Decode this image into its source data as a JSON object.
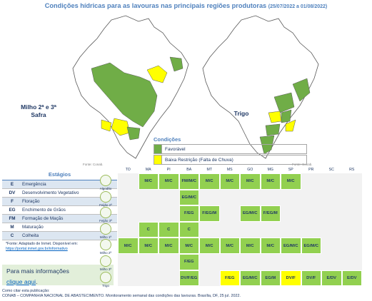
{
  "title": "Condições hídricas para as lavouras nas principais regiões produtoras",
  "period": "(25/07/2022 a 01/08/2022)",
  "map_left_label_line1": "Milho 2ª e 3ª",
  "map_left_label_line2": "Safra",
  "map_right_label": "Trigo",
  "map_source": "Fonte: Conab.",
  "legend": {
    "title": "Condições",
    "items": [
      {
        "label": "Favorável",
        "color": "#70ad47"
      },
      {
        "label": "Baixa Restrição (Falta de Chuva)",
        "color": "#ffff00"
      }
    ]
  },
  "stages": {
    "title": "Estágios",
    "items": [
      {
        "code": "E",
        "desc": "Emergência"
      },
      {
        "code": "DV",
        "desc": "Desenvolvimento Vegetativo"
      },
      {
        "code": "F",
        "desc": "Floração"
      },
      {
        "code": "EG",
        "desc": "Enchimento de Grãos"
      },
      {
        "code": "FM",
        "desc": "Formação de Maçãs"
      },
      {
        "code": "M",
        "desc": "Maturação"
      },
      {
        "code": "C",
        "desc": "Colheita"
      }
    ]
  },
  "source_note": "*Fonte: Adaptado de Inmet. Disponível em:",
  "source_link": "https://portal.inmet.gov.br/informativo",
  "more_info": "Para mais informações",
  "more_info_link": "clique aqui",
  "more_info_dot": ".",
  "cite_line1": "Como citar esta publicação:",
  "cite_line2": "CONAB – COMPANHIA NACIONAL DE ABASTECIMENTO. Monitoramento semanal das condições das lavouras. Brasília, DF, 25 jul. 2022.",
  "table": {
    "states": [
      "TO",
      "MA",
      "PI",
      "BA",
      "MT",
      "MS",
      "GO",
      "MG",
      "SP",
      "PR",
      "SC",
      "RS"
    ],
    "crops": [
      "Algodão",
      "Feijão 2ª",
      "Feijão 3ª",
      "Milho 1ª",
      "Milho 2ª",
      "Milho 3ª",
      "Trigo"
    ],
    "rows": [
      [
        "",
        "M/C",
        "M/C",
        "FM/M/C",
        "M/C",
        "M/C",
        "M/C",
        "M/C",
        "M/C",
        "",
        "",
        ""
      ],
      [
        "",
        "",
        "",
        "EG/M/C",
        "",
        "",
        "",
        "",
        "",
        "",
        "",
        ""
      ],
      [
        "",
        "",
        "",
        "F/EG",
        "F/EG/M",
        "",
        "EG/M/C",
        "F/EG/M",
        "",
        "",
        "",
        ""
      ],
      [
        "",
        "C",
        "C",
        "C",
        "",
        "",
        "",
        "",
        "",
        "",
        "",
        ""
      ],
      [
        "M/C",
        "M/C",
        "M/C",
        "M/C",
        "M/C",
        "M/C",
        "M/C",
        "M/C",
        "EG/M/C",
        "EG/M/C",
        "",
        ""
      ],
      [
        "",
        "",
        "",
        "F/EG",
        "",
        "",
        "",
        "",
        "",
        "",
        "",
        ""
      ],
      [
        "",
        "",
        "",
        "DV/F/EG",
        "",
        "F/EG",
        "EG/M/C",
        "EG/M",
        "DV/F",
        "DV/F",
        "E/DV",
        "E/DV"
      ]
    ],
    "yellow_cells": [
      "6-5",
      "6-8"
    ],
    "green_color": "#92d050",
    "yellow_color": "#ffff00"
  }
}
